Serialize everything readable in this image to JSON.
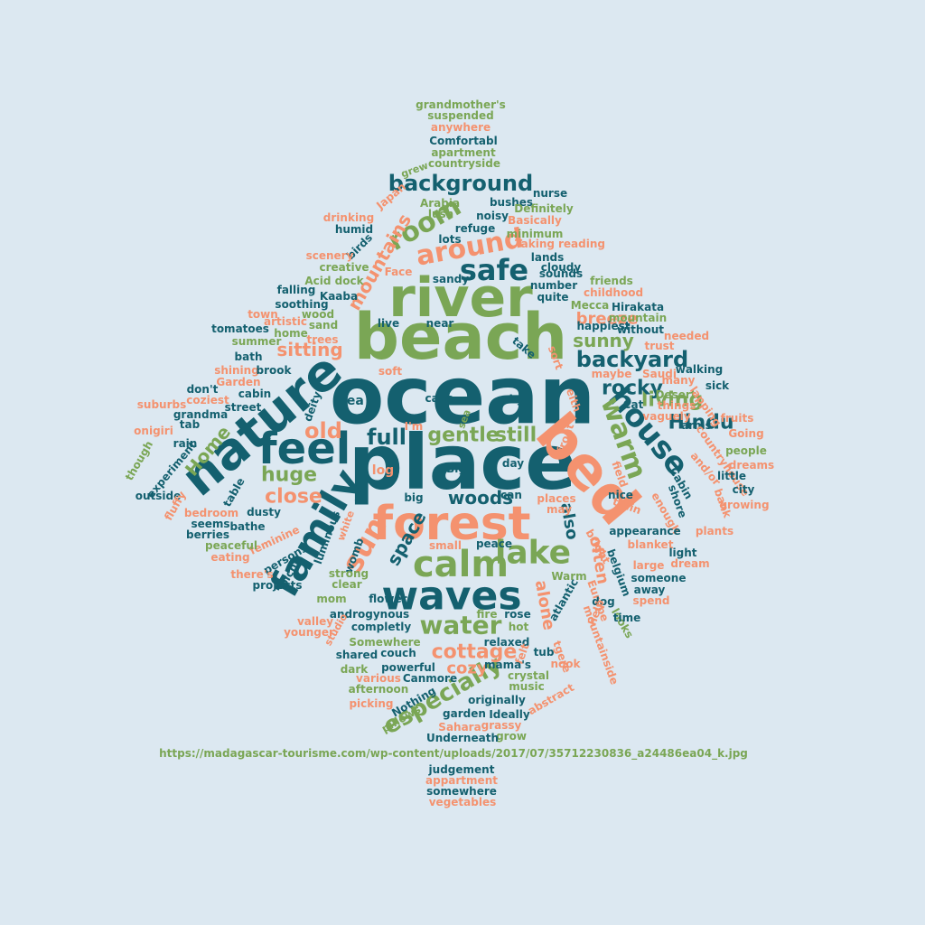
{
  "colors": {
    "background": "#dce8f1",
    "teal": "#14606f",
    "green": "#7aa655",
    "salmon": "#f4926f"
  },
  "words": [
    {
      "text": "ocean",
      "color": "teal"
    },
    {
      "text": "place",
      "color": "teal"
    },
    {
      "text": "beach",
      "color": "green"
    },
    {
      "text": "river",
      "color": "green"
    },
    {
      "text": "forest",
      "color": "salmon"
    },
    {
      "text": "nature",
      "color": "teal"
    },
    {
      "text": "bed",
      "color": "salmon"
    },
    {
      "text": "family",
      "color": "teal"
    },
    {
      "text": "waves",
      "color": "teal"
    },
    {
      "text": "calm",
      "color": "green"
    },
    {
      "text": "feel",
      "color": "teal"
    },
    {
      "text": "house",
      "color": "teal"
    },
    {
      "text": "lake",
      "color": "green"
    },
    {
      "text": "water",
      "color": "green"
    },
    {
      "text": "warm",
      "color": "green"
    },
    {
      "text": "safe",
      "color": "teal"
    },
    {
      "text": "room",
      "color": "green"
    },
    {
      "text": "around",
      "color": "salmon"
    },
    {
      "text": "sun",
      "color": "salmon"
    },
    {
      "text": "background",
      "color": "teal"
    },
    {
      "text": "especially",
      "color": "green"
    },
    {
      "text": "backyard",
      "color": "teal"
    },
    {
      "text": "cottage",
      "color": "salmon"
    },
    {
      "text": "mountains",
      "color": "salmon"
    },
    {
      "text": "space",
      "color": "teal"
    },
    {
      "text": "Home",
      "color": "green"
    },
    {
      "text": "gentle",
      "color": "green"
    },
    {
      "text": "still",
      "color": "green"
    },
    {
      "text": "full",
      "color": "teal"
    },
    {
      "text": "old",
      "color": "salmon"
    },
    {
      "text": "huge",
      "color": "green"
    },
    {
      "text": "close",
      "color": "salmon"
    },
    {
      "text": "woods",
      "color": "teal"
    },
    {
      "text": "living",
      "color": "green"
    },
    {
      "text": "Hindu",
      "color": "teal"
    },
    {
      "text": "rocky",
      "color": "teal"
    },
    {
      "text": "sunny",
      "color": "green"
    },
    {
      "text": "breeze",
      "color": "salmon"
    },
    {
      "text": "sitting",
      "color": "salmon"
    },
    {
      "text": "alone",
      "color": "salmon"
    },
    {
      "text": "often",
      "color": "salmon"
    },
    {
      "text": "also",
      "color": "teal"
    },
    {
      "text": "cozy",
      "color": "salmon"
    },
    {
      "text": "grandmother's",
      "color": "green"
    },
    {
      "text": "suspended",
      "color": "green"
    },
    {
      "text": "anywhere",
      "color": "salmon"
    },
    {
      "text": "Comfortabl",
      "color": "teal"
    },
    {
      "text": "apartment",
      "color": "green"
    },
    {
      "text": "countryside",
      "color": "green"
    },
    {
      "text": "grew",
      "color": "green"
    },
    {
      "text": "Japan",
      "color": "salmon"
    },
    {
      "text": "Arabia",
      "color": "green"
    },
    {
      "text": "bushes",
      "color": "teal"
    },
    {
      "text": "nurse",
      "color": "teal"
    },
    {
      "text": "lush",
      "color": "green"
    },
    {
      "text": "noisy",
      "color": "teal"
    },
    {
      "text": "Definitely",
      "color": "green"
    },
    {
      "text": "drinking",
      "color": "salmon"
    },
    {
      "text": "humid",
      "color": "teal"
    },
    {
      "text": "refuge",
      "color": "teal"
    },
    {
      "text": "Basically",
      "color": "salmon"
    },
    {
      "text": "lots",
      "color": "teal"
    },
    {
      "text": "minimum",
      "color": "green"
    },
    {
      "text": "birds",
      "color": "teal"
    },
    {
      "text": "scenery",
      "color": "salmon"
    },
    {
      "text": "Taking",
      "color": "salmon"
    },
    {
      "text": "reading",
      "color": "salmon"
    },
    {
      "text": "lands",
      "color": "teal"
    },
    {
      "text": "creative",
      "color": "green"
    },
    {
      "text": "cloudy",
      "color": "teal"
    },
    {
      "text": "Face",
      "color": "salmon"
    },
    {
      "text": "sounds",
      "color": "teal"
    },
    {
      "text": "Acid dock",
      "color": "green"
    },
    {
      "text": "sandy",
      "color": "teal"
    },
    {
      "text": "friends",
      "color": "green"
    },
    {
      "text": "number",
      "color": "teal"
    },
    {
      "text": "falling",
      "color": "teal"
    },
    {
      "text": "childhood",
      "color": "salmon"
    },
    {
      "text": "quite",
      "color": "teal"
    },
    {
      "text": "soothing",
      "color": "teal"
    },
    {
      "text": "Kaaba",
      "color": "teal"
    },
    {
      "text": "Hirakata",
      "color": "teal"
    },
    {
      "text": "Mecca",
      "color": "green"
    },
    {
      "text": "wood",
      "color": "green"
    },
    {
      "text": "town",
      "color": "salmon"
    },
    {
      "text": "mountain",
      "color": "green"
    },
    {
      "text": "artistic",
      "color": "salmon"
    },
    {
      "text": "sand",
      "color": "green"
    },
    {
      "text": "live",
      "color": "teal"
    },
    {
      "text": "near",
      "color": "teal"
    },
    {
      "text": "without",
      "color": "teal"
    },
    {
      "text": "tomatoes",
      "color": "teal"
    },
    {
      "text": "home",
      "color": "green"
    },
    {
      "text": "happiest",
      "color": "teal"
    },
    {
      "text": "summer",
      "color": "green"
    },
    {
      "text": "trees",
      "color": "salmon"
    },
    {
      "text": "needed",
      "color": "salmon"
    },
    {
      "text": "trust",
      "color": "salmon"
    },
    {
      "text": "bath",
      "color": "teal"
    },
    {
      "text": "take",
      "color": "teal"
    },
    {
      "text": "sort",
      "color": "salmon"
    },
    {
      "text": "shining",
      "color": "salmon"
    },
    {
      "text": "brook",
      "color": "teal"
    },
    {
      "text": "soft",
      "color": "salmon"
    },
    {
      "text": "maybe",
      "color": "salmon"
    },
    {
      "text": "walking",
      "color": "teal"
    },
    {
      "text": "Saudi",
      "color": "salmon"
    },
    {
      "text": "Garden",
      "color": "salmon"
    },
    {
      "text": "many",
      "color": "salmon"
    },
    {
      "text": "don't",
      "color": "teal"
    },
    {
      "text": "cabin",
      "color": "teal"
    },
    {
      "text": "tea",
      "color": "teal"
    },
    {
      "text": "caps",
      "color": "teal"
    },
    {
      "text": "sky",
      "color": "teal"
    },
    {
      "text": "Desert",
      "color": "green"
    },
    {
      "text": "sick",
      "color": "teal"
    },
    {
      "text": "coziest",
      "color": "salmon"
    },
    {
      "text": "suburbs",
      "color": "salmon"
    },
    {
      "text": "street",
      "color": "teal"
    },
    {
      "text": "things",
      "color": "salmon"
    },
    {
      "text": "grandma",
      "color": "teal"
    },
    {
      "text": "Cat",
      "color": "teal"
    },
    {
      "text": "vaguely",
      "color": "salmon"
    },
    {
      "text": "tab",
      "color": "teal"
    },
    {
      "text": "arms",
      "color": "teal"
    },
    {
      "text": "fruits",
      "color": "salmon"
    },
    {
      "text": "onigiri",
      "color": "salmon"
    },
    {
      "text": "I'm",
      "color": "salmon"
    },
    {
      "text": "Going",
      "color": "salmon"
    },
    {
      "text": "rain",
      "color": "teal"
    },
    {
      "text": "deity",
      "color": "teal"
    },
    {
      "text": "sea",
      "color": "green"
    },
    {
      "text": "eith",
      "color": "salmon"
    },
    {
      "text": "front",
      "color": "salmon"
    },
    {
      "text": "lapping",
      "color": "salmon"
    },
    {
      "text": "countryhouse",
      "color": "salmon"
    },
    {
      "text": "people",
      "color": "green"
    },
    {
      "text": "though",
      "color": "green"
    },
    {
      "text": "experiment",
      "color": "teal"
    },
    {
      "text": "log",
      "color": "salmon"
    },
    {
      "text": "Big",
      "color": "teal"
    },
    {
      "text": "day",
      "color": "teal"
    },
    {
      "text": "field",
      "color": "salmon"
    },
    {
      "text": "dreams",
      "color": "salmon"
    },
    {
      "text": "little",
      "color": "teal"
    },
    {
      "text": "and/or",
      "color": "salmon"
    },
    {
      "text": "Cabin",
      "color": "teal"
    },
    {
      "text": "shore",
      "color": "teal"
    },
    {
      "text": "outside",
      "color": "teal"
    },
    {
      "text": "table",
      "color": "teal"
    },
    {
      "text": "enough",
      "color": "salmon"
    },
    {
      "text": "city",
      "color": "teal"
    },
    {
      "text": "fluffy",
      "color": "salmon"
    },
    {
      "text": "nice",
      "color": "teal"
    },
    {
      "text": "bank",
      "color": "salmon"
    },
    {
      "text": "growing",
      "color": "salmon"
    },
    {
      "text": "big",
      "color": "teal"
    },
    {
      "text": "can",
      "color": "teal"
    },
    {
      "text": "places",
      "color": "salmon"
    },
    {
      "text": "train",
      "color": "salmon"
    },
    {
      "text": "bedroom",
      "color": "salmon"
    },
    {
      "text": "dusty",
      "color": "teal"
    },
    {
      "text": "may",
      "color": "salmon"
    },
    {
      "text": "seems",
      "color": "teal"
    },
    {
      "text": "white",
      "color": "salmon"
    },
    {
      "text": "bathe",
      "color": "teal"
    },
    {
      "text": "luminous",
      "color": "teal"
    },
    {
      "text": "appearance",
      "color": "teal"
    },
    {
      "text": "berries",
      "color": "teal"
    },
    {
      "text": "plants",
      "color": "salmon"
    },
    {
      "text": "feminine",
      "color": "salmon"
    },
    {
      "text": "peace",
      "color": "teal"
    },
    {
      "text": "bright",
      "color": "salmon"
    },
    {
      "text": "blanket",
      "color": "salmon"
    },
    {
      "text": "light",
      "color": "teal"
    },
    {
      "text": "peaceful",
      "color": "green"
    },
    {
      "text": "small",
      "color": "salmon"
    },
    {
      "text": "womb",
      "color": "teal"
    },
    {
      "text": "eating",
      "color": "salmon"
    },
    {
      "text": "persons",
      "color": "teal"
    },
    {
      "text": "large",
      "color": "salmon"
    },
    {
      "text": "dream",
      "color": "salmon"
    },
    {
      "text": "there's",
      "color": "salmon"
    },
    {
      "text": "picnic",
      "color": "teal"
    },
    {
      "text": "strong",
      "color": "green"
    },
    {
      "text": "Warm",
      "color": "green"
    },
    {
      "text": "belgium",
      "color": "teal"
    },
    {
      "text": "someone",
      "color": "teal"
    },
    {
      "text": "projects",
      "color": "teal"
    },
    {
      "text": "clear",
      "color": "green"
    },
    {
      "text": "away",
      "color": "teal"
    },
    {
      "text": "mom",
      "color": "green"
    },
    {
      "text": "flowers",
      "color": "teal"
    },
    {
      "text": "atlantic",
      "color": "teal"
    },
    {
      "text": "Europe",
      "color": "salmon"
    },
    {
      "text": "dog",
      "color": "teal"
    },
    {
      "text": "spend",
      "color": "salmon"
    },
    {
      "text": "androgynous",
      "color": "teal"
    },
    {
      "text": "help",
      "color": "salmon"
    },
    {
      "text": "looks",
      "color": "green"
    },
    {
      "text": "valley",
      "color": "salmon"
    },
    {
      "text": "fire",
      "color": "green"
    },
    {
      "text": "rose",
      "color": "teal"
    },
    {
      "text": "time",
      "color": "teal"
    },
    {
      "text": "studio",
      "color": "salmon"
    },
    {
      "text": "completly",
      "color": "teal"
    },
    {
      "text": "hot",
      "color": "green"
    },
    {
      "text": "younger",
      "color": "salmon"
    },
    {
      "text": "mountainside",
      "color": "salmon"
    },
    {
      "text": "Somewhere",
      "color": "green"
    },
    {
      "text": "relaxed",
      "color": "teal"
    },
    {
      "text": "shared",
      "color": "teal"
    },
    {
      "text": "couch",
      "color": "teal"
    },
    {
      "text": "felt",
      "color": "salmon"
    },
    {
      "text": "tub",
      "color": "teal"
    },
    {
      "text": "tgere",
      "color": "salmon"
    },
    {
      "text": "dark",
      "color": "green"
    },
    {
      "text": "powerful",
      "color": "teal"
    },
    {
      "text": "mama's",
      "color": "teal"
    },
    {
      "text": "nook",
      "color": "salmon"
    },
    {
      "text": "various",
      "color": "salmon"
    },
    {
      "text": "Canmore",
      "color": "teal"
    },
    {
      "text": "crystal",
      "color": "green"
    },
    {
      "text": "afternoon",
      "color": "green"
    },
    {
      "text": "music",
      "color": "green"
    },
    {
      "text": "Nothing",
      "color": "teal"
    },
    {
      "text": "abstract",
      "color": "salmon"
    },
    {
      "text": "picking",
      "color": "salmon"
    },
    {
      "text": "originally",
      "color": "teal"
    },
    {
      "text": "pillows",
      "color": "green"
    },
    {
      "text": "garden",
      "color": "teal"
    },
    {
      "text": "Ideally",
      "color": "teal"
    },
    {
      "text": "Sahara",
      "color": "salmon"
    },
    {
      "text": "grassy",
      "color": "salmon"
    },
    {
      "text": "grow",
      "color": "green"
    },
    {
      "text": "Underneath",
      "color": "teal"
    },
    {
      "text": "https://madagascar-tourisme.com/wp-content/uploads/2017/07/35712230836_a24486ea04_k.jpg",
      "color": "green"
    },
    {
      "text": "judgement",
      "color": "teal"
    },
    {
      "text": "appartment",
      "color": "salmon"
    },
    {
      "text": "somewhere",
      "color": "teal"
    },
    {
      "text": "vegetables",
      "color": "salmon"
    }
  ]
}
